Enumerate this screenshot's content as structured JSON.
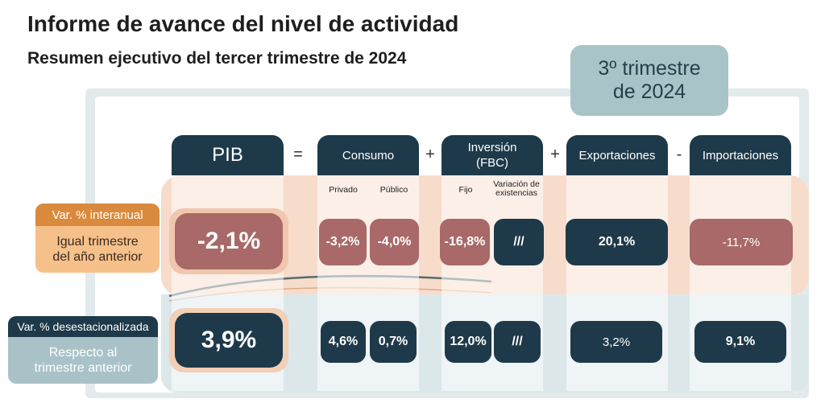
{
  "header": {
    "title": "Informe de avance del nivel de actividad",
    "subtitle": "Resumen ejecutivo del tercer trimestre de 2024",
    "period": "3º trimestre\nde 2024"
  },
  "row_labels": {
    "interanual": {
      "tag": "Var. % interanual",
      "description": "Igual trimestre\ndel año anterior"
    },
    "desestacionalizada": {
      "tag": "Var. % desestacionalizada",
      "description": "Respecto al\ntrimestre anterior"
    }
  },
  "operators": {
    "equals": "=",
    "plus1": "+",
    "plus2": "+",
    "minus": "-"
  },
  "columns": {
    "pib": {
      "label": "PIB",
      "interanual": "-2,1%",
      "desestacionalizada": "3,9%"
    },
    "consumo": {
      "label": "Consumo",
      "sub_privado": "Privado",
      "sub_publico": "Público",
      "privado_interanual": "-3,2%",
      "publico_interanual": "-4,0%",
      "privado_desest": "4,6%",
      "publico_desest": "0,7%"
    },
    "inversion": {
      "label": "Inversión",
      "label2": "(FBC)",
      "sub_fijo": "Fijo",
      "sub_variacion": "Variación de existencias",
      "fijo_interanual": "-16,8%",
      "variacion_interanual": "///",
      "fijo_desest": "12,0%",
      "variacion_desest": "///"
    },
    "exportaciones": {
      "label": "Exportaciones",
      "interanual": "20,1%",
      "desestacionalizada": "3,2%"
    },
    "importaciones": {
      "label": "Importaciones",
      "interanual": "-11,7%",
      "desestacionalizada": "9,1%"
    }
  },
  "colors": {
    "navy": "#1e3a4a",
    "negative": "#a86968",
    "orange_tag": "#d98a3c",
    "orange_band": "#f7dccb",
    "blue_band": "#dce7ea",
    "period_badge": "#a9c4c9"
  }
}
